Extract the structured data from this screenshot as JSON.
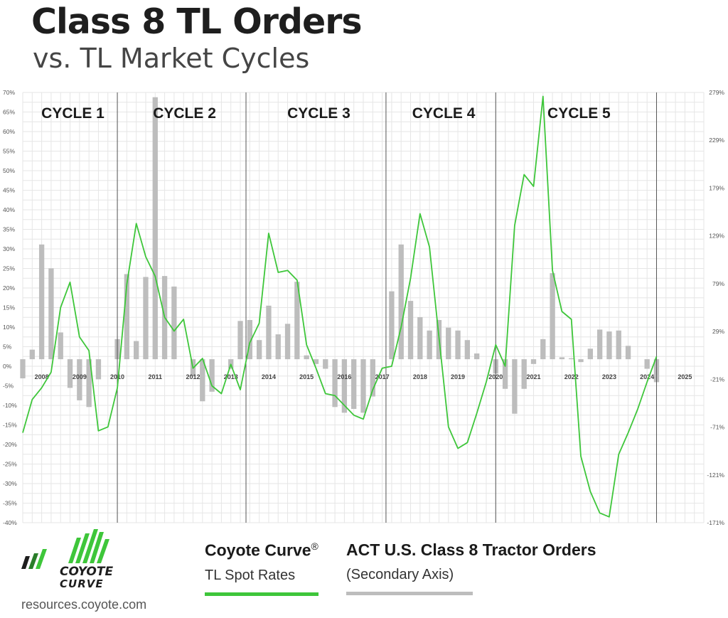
{
  "header": {
    "title": "Class 8 TL Orders",
    "subtitle": "vs. TL Market Cycles"
  },
  "legend": {
    "spot": {
      "title": "Coyote Curve",
      "mark": "®",
      "subtitle": "TL Spot Rates"
    },
    "orders": {
      "title": "ACT U.S. Class 8 Tractor Orders",
      "subtitle": "(Secondary Axis)"
    }
  },
  "logo": {
    "line1": "COYOTE",
    "line2": "CURVE",
    "icon": "coyote-curve-bars-logo"
  },
  "footer": {
    "url": "resources.coyote.com"
  },
  "colors": {
    "line": "#3ec63a",
    "bar": "#bdbdbd",
    "grid": "#e6e6e6",
    "divider": "#555555"
  },
  "chart_data": {
    "type": "bar",
    "primary_axis": {
      "ticks": [
        "70%",
        "65%",
        "60%",
        "55%",
        "50%",
        "45%",
        "40%",
        "35%",
        "30%",
        "25%",
        "20%",
        "15%",
        "10%",
        "5%",
        "0%",
        "-5%",
        "-10%",
        "-15%",
        "-20%",
        "-25%",
        "-30%",
        "-35%",
        "-40%"
      ],
      "ylim": [
        -40,
        70
      ]
    },
    "secondary_axis": {
      "ticks": [
        "279%",
        "229%",
        "179%",
        "129%",
        "79%",
        "29%",
        "-21%",
        "-71%",
        "-121%",
        "-171%"
      ],
      "ylim": [
        -171,
        279
      ]
    },
    "x_ticks": [
      "2008",
      "2009",
      "2010",
      "2011",
      "2012",
      "2013",
      "2014",
      "2015",
      "2016",
      "2017",
      "2018",
      "2019",
      "2020",
      "2021",
      "2022",
      "2023",
      "2024",
      "2025"
    ],
    "x_range": [
      2007.5,
      2025.5
    ],
    "cycles": [
      {
        "label": "CYCLE 1",
        "start": 2007.5,
        "end": 2010.0
      },
      {
        "label": "CYCLE 2",
        "start": 2010.0,
        "end": 2013.4
      },
      {
        "label": "CYCLE 3",
        "start": 2013.4,
        "end": 2017.1
      },
      {
        "label": "CYCLE 4",
        "start": 2017.1,
        "end": 2020.0
      },
      {
        "label": "CYCLE 5",
        "start": 2020.0,
        "end": 2024.25
      }
    ],
    "series": [
      {
        "name": "ACT U.S. Class 8 Tractor Orders",
        "axis": "secondary",
        "kind": "bar",
        "x": [
          2007.5,
          2007.75,
          2008.0,
          2008.25,
          2008.5,
          2008.75,
          2009.0,
          2009.25,
          2009.5,
          2009.75,
          2010.0,
          2010.25,
          2010.5,
          2010.75,
          2011.0,
          2011.25,
          2011.5,
          2011.75,
          2012.0,
          2012.25,
          2012.5,
          2012.75,
          2013.0,
          2013.25,
          2013.5,
          2013.75,
          2014.0,
          2014.25,
          2014.5,
          2014.75,
          2015.0,
          2015.25,
          2015.5,
          2015.75,
          2016.0,
          2016.25,
          2016.5,
          2016.75,
          2017.0,
          2017.25,
          2017.5,
          2017.75,
          2018.0,
          2018.25,
          2018.5,
          2018.75,
          2019.0,
          2019.25,
          2019.5,
          2019.75,
          2020.0,
          2020.25,
          2020.5,
          2020.75,
          2021.0,
          2021.25,
          2021.5,
          2021.75,
          2022.0,
          2022.25,
          2022.5,
          2022.75,
          2023.0,
          2023.25,
          2023.5,
          2023.75,
          2024.0,
          2024.25
        ],
        "values": [
          -20,
          10,
          120,
          95,
          28,
          -30,
          -43,
          -50,
          -21,
          0,
          21,
          89,
          19,
          86,
          274,
          87,
          76,
          0,
          -18,
          -44,
          -34,
          0,
          -10,
          40,
          41,
          20,
          56,
          26,
          37,
          81,
          4,
          -5,
          -10,
          -50,
          -56,
          -52,
          -56,
          -39,
          0,
          71,
          120,
          61,
          44,
          30,
          41,
          33,
          30,
          20,
          6,
          0,
          -15,
          -31,
          -57,
          -31,
          -5,
          21,
          90,
          2,
          1,
          -3,
          11,
          31,
          29,
          30,
          14,
          0,
          -10,
          -24
        ]
      },
      {
        "name": "Coyote Curve TL Spot Rates",
        "axis": "primary",
        "kind": "line",
        "x": [
          2007.5,
          2007.75,
          2008.0,
          2008.25,
          2008.5,
          2008.75,
          2009.0,
          2009.25,
          2009.5,
          2009.75,
          2010.0,
          2010.25,
          2010.5,
          2010.75,
          2011.0,
          2011.25,
          2011.5,
          2011.75,
          2012.0,
          2012.25,
          2012.5,
          2012.75,
          2013.0,
          2013.25,
          2013.5,
          2013.75,
          2014.0,
          2014.25,
          2014.5,
          2014.75,
          2015.0,
          2015.25,
          2015.5,
          2015.75,
          2016.0,
          2016.25,
          2016.5,
          2016.75,
          2017.0,
          2017.25,
          2017.5,
          2017.75,
          2018.0,
          2018.25,
          2018.5,
          2018.75,
          2019.0,
          2019.25,
          2019.5,
          2019.75,
          2020.0,
          2020.25,
          2020.5,
          2020.75,
          2021.0,
          2021.25,
          2021.5,
          2021.75,
          2022.0,
          2022.25,
          2022.5,
          2022.75,
          2023.0,
          2023.25,
          2023.5,
          2023.75,
          2024.0,
          2024.25
        ],
        "values": [
          -17,
          -8.5,
          -5.5,
          -1.5,
          15,
          21.5,
          7.5,
          4,
          -16.5,
          -15.5,
          -5.5,
          21,
          36.5,
          28,
          23,
          12.5,
          9,
          12,
          -0.5,
          2,
          -5,
          -7,
          0.5,
          -6,
          6,
          11,
          34,
          24,
          24.5,
          22,
          5.5,
          -0.5,
          -7,
          -7.5,
          -10,
          -12.5,
          -13.5,
          -6,
          -0.5,
          0,
          10,
          22.5,
          39,
          30.5,
          7.5,
          -15.5,
          -21,
          -19.5,
          -12,
          -4,
          5.5,
          0,
          36,
          49,
          46,
          69,
          24.5,
          14,
          12,
          -23,
          -32,
          -37.5,
          -38.5,
          -22.5,
          -17,
          -11,
          -4,
          2.5
        ]
      }
    ]
  }
}
